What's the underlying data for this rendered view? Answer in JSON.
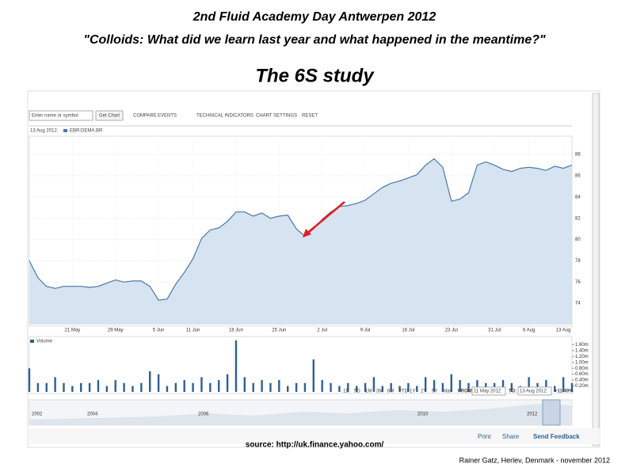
{
  "slide": {
    "title": [
      "2nd Fluid Academy Day Antwerpen 2012",
      "\"Colloids: What did we learn last year and what happened in the meantime?\""
    ],
    "heading": "The 6S study",
    "source": "source: http://uk.finance.yahoo.com/",
    "footer": "Rainer Gatz, Herlev, Denmark - november 2012"
  },
  "ui": {
    "search_placeholder": "Enter name or symbol",
    "get_chart": "Get Chart",
    "toolbar": [
      "COMPARE",
      "EVENTS",
      "TECHNICAL INDICATORS",
      "CHART SETTINGS",
      "RESET"
    ],
    "header_date": "13 Aug 2012:",
    "ranges": [
      "1D",
      "5D",
      "1M",
      "3M",
      "6M",
      "YTD",
      "1Y",
      "2Y",
      "5Y",
      "Max"
    ],
    "from_label": "FROM:",
    "from_date": "11 May 2012",
    "to_label": "TO:",
    "to_date": "13 Aug 2012",
    "change": "+11.49%",
    "navigator_years": [
      "2002",
      "2004",
      "2006",
      "2010",
      "2012"
    ],
    "links": [
      "Print",
      "Share",
      "Send Feedback"
    ]
  },
  "chart_data": {
    "type": "area",
    "categories": [
      null,
      null,
      null,
      null,
      null,
      "21 May",
      null,
      null,
      null,
      null,
      "29 May",
      null,
      null,
      null,
      null,
      "5 Jun",
      null,
      null,
      null,
      "11 Jun",
      null,
      null,
      null,
      null,
      "18 Jun",
      null,
      null,
      null,
      null,
      "25 Jun",
      null,
      null,
      null,
      null,
      "2 Jul",
      null,
      null,
      null,
      null,
      "9 Jul",
      null,
      null,
      null,
      null,
      "16 Jul",
      null,
      null,
      null,
      null,
      "23 Jul",
      null,
      null,
      null,
      null,
      "31 Jul",
      null,
      null,
      null,
      "6 Aug",
      null,
      null,
      null,
      "13 Aug",
      null
    ],
    "series": [
      {
        "name": "EBR:DEMA.BR",
        "color": "#4a78a8",
        "values": [
          78.0,
          76.4,
          75.6,
          75.4,
          75.6,
          75.6,
          75.6,
          75.5,
          75.6,
          75.9,
          76.2,
          76.0,
          76.1,
          76.1,
          75.6,
          74.3,
          74.4,
          75.8,
          76.9,
          78.2,
          80.1,
          80.9,
          81.1,
          81.7,
          82.6,
          82.6,
          82.2,
          82.5,
          82.0,
          82.2,
          82.3,
          81.0,
          80.3,
          81.0,
          81.9,
          82.6,
          83.1,
          83.2,
          83.4,
          83.7,
          84.3,
          84.9,
          85.3,
          85.5,
          85.8,
          86.1,
          87.0,
          87.6,
          86.8,
          83.6,
          83.8,
          84.4,
          87.0,
          87.3,
          87.0,
          86.6,
          86.4,
          86.7,
          86.8,
          86.7,
          86.5,
          86.9,
          86.7,
          87.0
        ]
      },
      {
        "name": "Volume",
        "color": "#2d5f95",
        "axis": "y2",
        "values": [
          0.8,
          0.3,
          0.3,
          0.5,
          0.3,
          0.2,
          0.3,
          0.3,
          0.4,
          0.2,
          0.4,
          0.3,
          0.2,
          0.3,
          0.7,
          0.6,
          0.2,
          0.3,
          0.4,
          0.3,
          0.5,
          0.3,
          0.4,
          0.6,
          1.75,
          0.5,
          0.3,
          0.4,
          0.3,
          0.4,
          0.2,
          0.3,
          0.3,
          1.1,
          0.4,
          0.3,
          0.2,
          0.3,
          0.2,
          0.3,
          0.5,
          0.2,
          0.3,
          0.2,
          0.3,
          0.2,
          0.5,
          0.4,
          0.3,
          0.6,
          0.4,
          0.3,
          0.4,
          0.3,
          0.3,
          0.4,
          0.3,
          0.2,
          0.5,
          0.3,
          0.4,
          0.2,
          0.5,
          0.3
        ]
      }
    ],
    "ylim": [
      72,
      89.5
    ],
    "yticks": [
      74,
      76,
      78,
      80,
      82,
      84,
      86,
      88
    ],
    "y2lim": [
      0,
      1.8
    ],
    "y2ticks": [
      {
        "value": 1.6,
        "label": "1.60m"
      },
      {
        "value": 1.4,
        "label": "1.40m"
      },
      {
        "value": 1.2,
        "label": "1.20m"
      },
      {
        "value": 1.0,
        "label": "1.00m"
      },
      {
        "value": 0.8,
        "label": "0.80m"
      },
      {
        "value": 0.6,
        "label": "0.60m"
      },
      {
        "value": 0.4,
        "label": "0.40m"
      },
      {
        "value": 0.2,
        "label": "0.20m"
      }
    ],
    "grid": true
  }
}
